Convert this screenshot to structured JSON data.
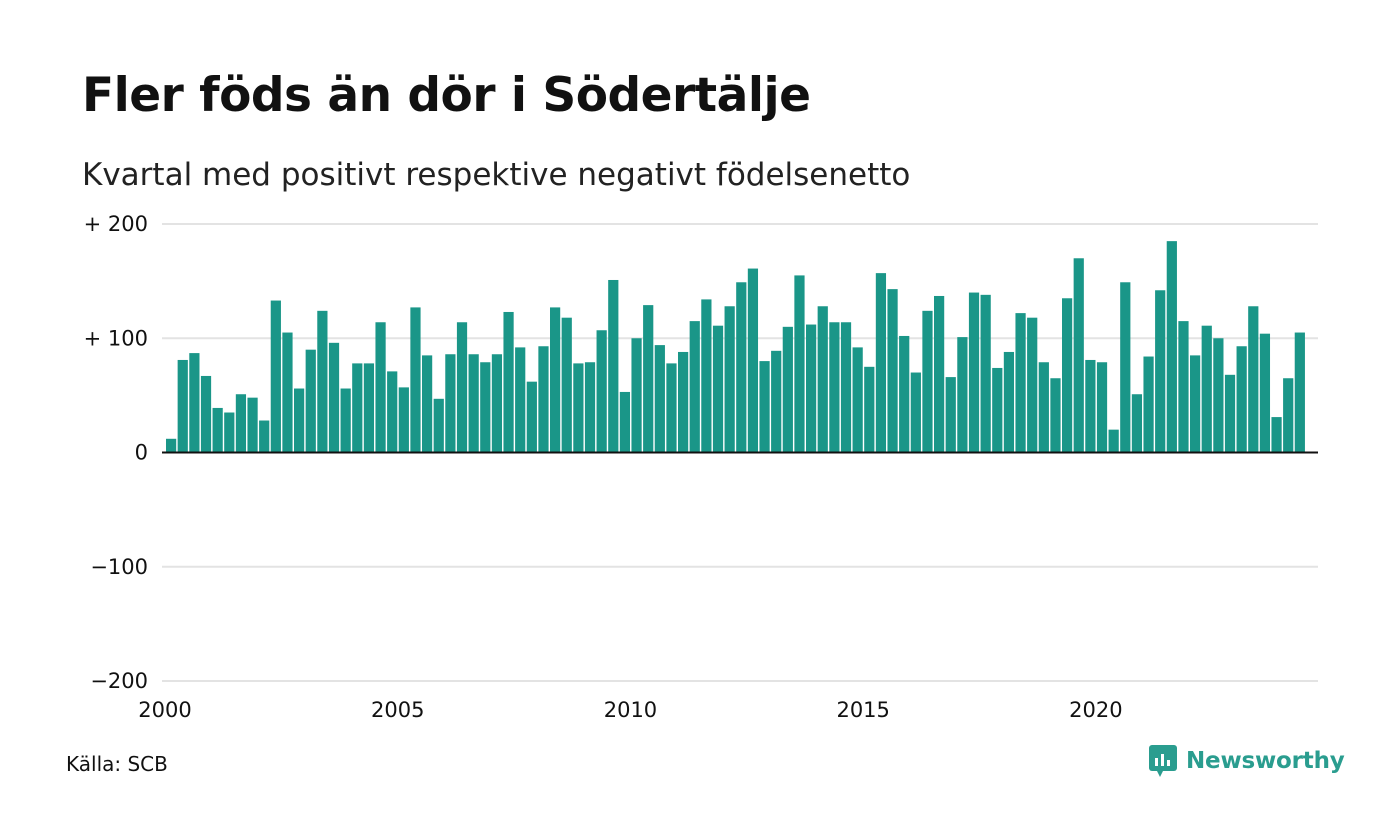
{
  "title": "Fler föds än dör i Södertälje",
  "subtitle": "Kvartal med positivt respektive negativt födelsenetto",
  "source": "Källa: SCB",
  "brand": {
    "name": "Newsworthy",
    "icon": "newsworthy-logo-icon",
    "color": "#2a9d8f"
  },
  "colors": {
    "bar": "#1a9688",
    "grid": "#e3e3e3",
    "zero_line": "#111111"
  },
  "chart_data": {
    "type": "bar",
    "title": "Fler föds än dör i Södertälje",
    "subtitle": "Kvartal med positivt respektive negativt födelsenetto",
    "xlabel": "",
    "ylabel": "",
    "ylim": [
      -200,
      200
    ],
    "xlim": [
      2000,
      2024.75
    ],
    "yticks": [
      200,
      100,
      0,
      -100,
      -200
    ],
    "ytick_labels": [
      "+ 200",
      "+ 100",
      "0",
      "−100",
      "−200"
    ],
    "xticks": [
      2000,
      2005,
      2010,
      2015,
      2020
    ],
    "xtick_labels": [
      "2000",
      "2005",
      "2010",
      "2015",
      "2020"
    ],
    "grid": true,
    "series": [
      {
        "values": [
          12,
          81,
          87,
          67,
          39,
          35,
          51,
          48,
          28,
          133,
          105,
          56,
          90,
          124,
          96,
          56,
          78,
          78,
          114,
          71,
          57,
          127,
          85,
          47,
          86,
          114,
          86,
          79,
          86,
          123,
          92,
          62,
          93,
          127,
          118,
          78,
          79,
          107,
          151,
          53,
          100,
          129,
          94,
          78,
          88,
          115,
          134,
          111,
          128,
          149,
          161,
          80,
          89,
          110,
          155,
          112,
          128,
          114,
          114,
          92,
          75,
          157,
          143,
          102,
          70,
          124,
          137,
          66,
          101,
          140,
          138,
          74,
          88,
          122,
          118,
          79,
          65,
          135,
          170,
          81,
          79,
          20,
          149,
          51,
          84,
          142,
          185,
          115,
          85,
          111,
          100,
          68,
          93,
          128,
          104,
          31,
          65,
          105
        ]
      }
    ]
  }
}
